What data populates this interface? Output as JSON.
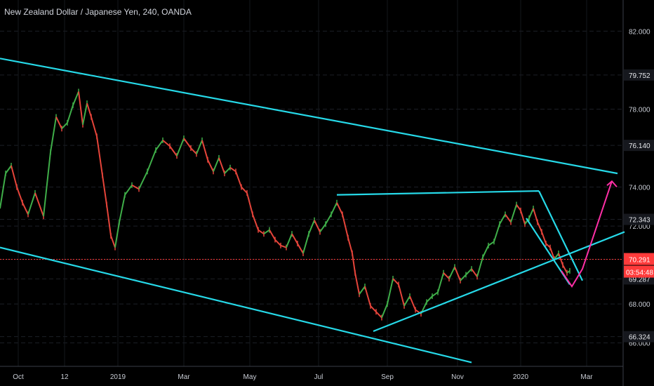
{
  "chart_data": {
    "type": "line",
    "title": "New Zealand Dollar / Japanese Yen, 240, OANDA",
    "xlabel": "",
    "ylabel": "",
    "ylim": [
      64.8,
      83.6
    ],
    "x_ticks": [
      "Oct",
      "12",
      "2019",
      "Mar",
      "May",
      "Jul",
      "Sep",
      "Nov",
      "2020",
      "Mar"
    ],
    "y_ticks": [
      "82.000",
      "78.000",
      "74.000",
      "72.000",
      "68.000",
      "66.000"
    ],
    "price_labels": [
      {
        "text": "79.752",
        "value": 79.752
      },
      {
        "text": "76.140",
        "value": 76.14
      },
      {
        "text": "72.343",
        "value": 72.343
      },
      {
        "text": "70.291",
        "value": 70.291
      },
      {
        "text": "69.287",
        "value": 69.287
      },
      {
        "text": "66.324",
        "value": 66.324
      }
    ],
    "current_price": {
      "value": 70.291,
      "countdown": "03:54:48",
      "color": "#ff3b3b"
    },
    "series": [
      {
        "x": [
          0,
          8,
          16,
          24,
          32,
          40,
          50,
          62,
          72,
          80,
          88,
          96,
          104,
          112,
          118,
          124,
          130,
          138,
          146,
          152,
          158,
          164,
          170,
          178,
          188,
          198,
          210,
          222,
          232,
          242,
          252,
          262,
          272,
          280,
          288,
          296,
          304,
          312,
          320,
          328,
          336,
          344,
          352,
          360,
          368,
          376,
          384,
          392,
          400,
          408,
          416,
          424,
          432,
          440,
          448,
          456,
          464,
          472,
          480,
          488,
          496,
          502,
          506,
          512,
          520,
          528,
          536,
          544,
          552,
          560,
          568,
          576,
          584,
          592,
          600,
          608,
          616,
          624,
          632,
          640,
          648,
          656,
          664,
          672,
          680,
          688,
          696,
          704,
          712,
          720,
          728,
          736,
          742,
          748,
          754,
          760,
          766,
          772,
          778,
          784,
          790,
          796,
          802,
          808,
          812
        ],
        "y": [
          72.9,
          74.7,
          75.1,
          74.0,
          73.2,
          72.6,
          73.7,
          72.5,
          75.8,
          77.6,
          77.0,
          77.3,
          78.2,
          78.9,
          77.2,
          78.3,
          77.6,
          76.6,
          74.6,
          73.1,
          71.5,
          70.9,
          72.2,
          73.6,
          74.1,
          73.9,
          74.8,
          75.9,
          76.4,
          76.1,
          75.6,
          76.5,
          76.0,
          75.7,
          76.4,
          75.4,
          74.8,
          75.5,
          74.7,
          75.0,
          74.8,
          74.0,
          73.7,
          72.6,
          71.8,
          71.6,
          71.8,
          71.3,
          71.0,
          70.9,
          71.6,
          71.1,
          70.6,
          71.6,
          72.3,
          71.7,
          72.1,
          72.6,
          73.2,
          72.6,
          71.4,
          70.6,
          69.6,
          68.5,
          68.9,
          67.9,
          67.6,
          67.3,
          68.0,
          69.3,
          69.0,
          67.9,
          68.4,
          67.7,
          67.5,
          68.1,
          68.4,
          68.6,
          69.6,
          69.3,
          69.9,
          69.2,
          69.5,
          69.8,
          69.4,
          70.4,
          71.0,
          71.2,
          72.1,
          72.6,
          72.2,
          73.1,
          72.8,
          72.1,
          72.4,
          72.9,
          72.2,
          71.7,
          71.1,
          70.9,
          70.3,
          70.6,
          70.0,
          69.6,
          69.7
        ]
      }
    ],
    "annotations": [
      {
        "kind": "trendline",
        "color": "#26d9e8",
        "from": [
          0,
          80.6
        ],
        "to": [
          880,
          74.7
        ]
      },
      {
        "kind": "trendline",
        "color": "#26d9e8",
        "from": [
          0,
          70.9
        ],
        "to": [
          672,
          65.0
        ]
      },
      {
        "kind": "trendline",
        "color": "#26d9e8",
        "from": [
          480,
          73.6
        ],
        "to": [
          768,
          73.8
        ]
      },
      {
        "kind": "trendline",
        "color": "#26d9e8",
        "from": [
          532,
          66.6
        ],
        "to": [
          890,
          71.7
        ]
      },
      {
        "kind": "trendline",
        "color": "#26d9e8",
        "from": [
          768,
          73.8
        ],
        "to": [
          830,
          69.2
        ]
      },
      {
        "kind": "trendline",
        "color": "#26d9e8",
        "from": [
          750,
          72.4
        ],
        "to": [
          812,
          69.0
        ]
      },
      {
        "kind": "projection",
        "color": "#ff2fa6",
        "points": [
          [
            800,
            69.7
          ],
          [
            815,
            68.9
          ],
          [
            830,
            69.8
          ],
          [
            872,
            74.3
          ]
        ]
      }
    ]
  }
}
